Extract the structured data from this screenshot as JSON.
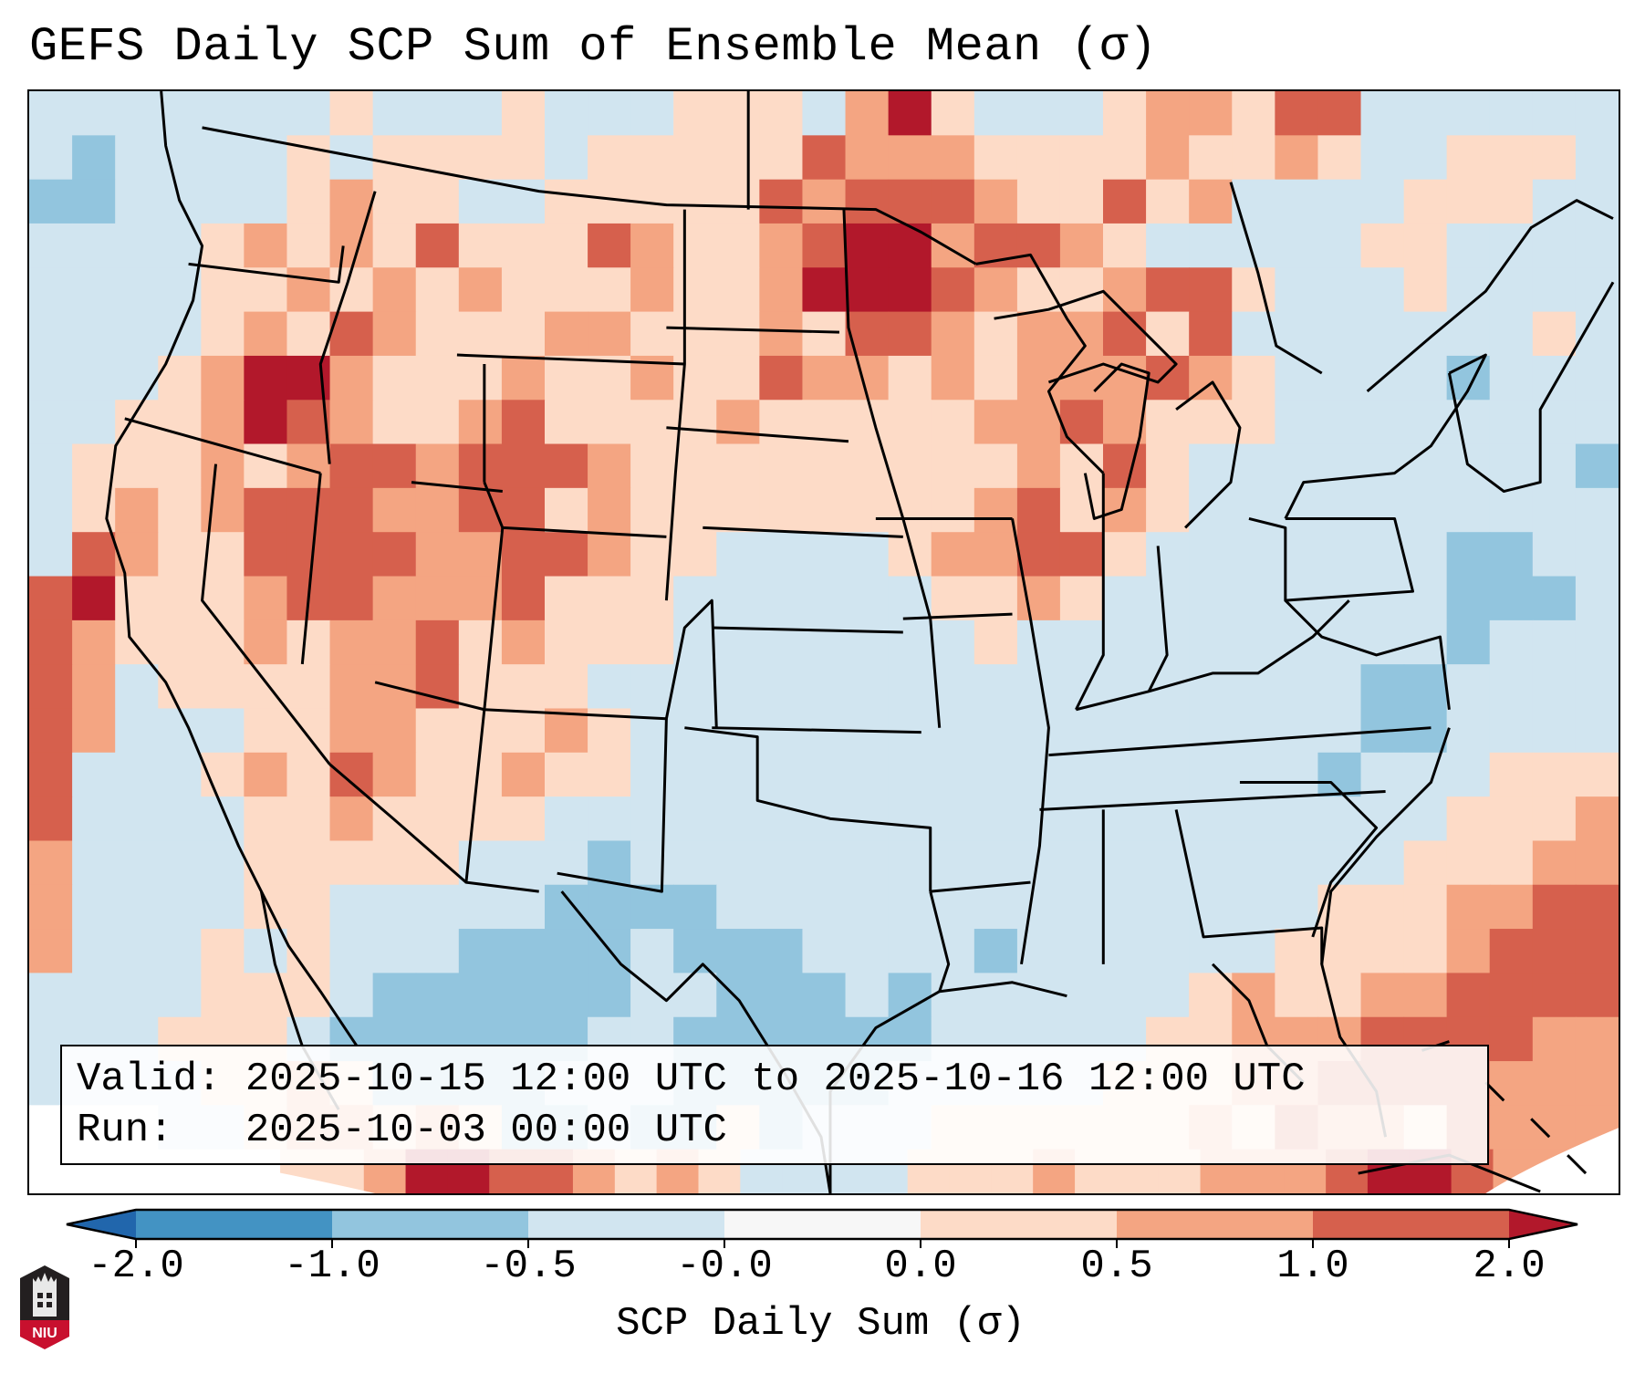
{
  "title": "GEFS Daily SCP Sum of Ensemble Mean (σ)",
  "info_box": {
    "valid_line": "Valid: 2025-10-15 12:00 UTC to 2025-10-16 12:00 UTC",
    "run_line": "Run:   2025-10-03 00:00 UTC"
  },
  "logo": {
    "text": "NIU",
    "colors": {
      "top": "#231f20",
      "bottom": "#c8102e"
    }
  },
  "chart_data": {
    "type": "heatmap",
    "title": "GEFS Daily SCP Sum of Ensemble Mean (σ)",
    "colorbar": {
      "label": "SCP Daily Sum (σ)",
      "ticks": [
        "-2.0",
        "-1.0",
        "-0.5",
        "-0.0",
        "0.0",
        "0.5",
        "1.0",
        "2.0"
      ],
      "extend": "both",
      "bins": [
        {
          "code": "a",
          "range": "< -2.0",
          "color": "#2166ac"
        },
        {
          "code": "b",
          "range": "-2.0 to -1.0",
          "color": "#4393c3"
        },
        {
          "code": "c",
          "range": "-1.0 to -0.5",
          "color": "#92c5de"
        },
        {
          "code": "d",
          "range": "-0.5 to -0.0",
          "color": "#d1e5f0"
        },
        {
          "code": "e",
          "range": "-0.0 to 0.0",
          "color": "#f7f7f7"
        },
        {
          "code": "f",
          "range": "0.0 to 0.5",
          "color": "#fddbc7"
        },
        {
          "code": "g",
          "range": "0.5 to 1.0",
          "color": "#f4a582"
        },
        {
          "code": "h",
          "range": "1.0 to 2.0",
          "color": "#d6604d"
        },
        {
          "code": "i",
          "range": "> 2.0",
          "color": "#b2182b"
        }
      ]
    },
    "region": "Continental United States, Gulf of Mexico, western Atlantic",
    "grid_legend": "Each character is one approximate grid cell (west to east, north to south); '.' = outside projection",
    "grid": [
      "dddddddfdddfdddfffdgifdddfggfhhdddddd",
      "dcddddfdffffdfffffhgggffffgffgfddfffd",
      "ccddddfgffddfffffhghhhgffhfgddddfffdd",
      "ddddfgfgfhfffhgffghiighhgfdddddffdddd",
      "ddddffgfgfgfffgffgiiihgffghhfdddfdddd",
      "ddddfgfhgfffggfffgfhhgfgghfhdddddddfd",
      "dddfgiigfffgffgffhggfgfggghgfddddcddd",
      "ddffgihgffghffffgfffffgghgfffdddddddd",
      "dfffgfghhghhhgfffffffffgfhfdddddddddc",
      "dfgfghhhgghhfgffffffffghfgfdddddddddd",
      "dhgffhhhhgghhgffddddfgghhfdddddddccdd",
      "hifffghhggghfffddddddffgfddddddddcccd",
      "hgfffgfgghfgfffdddddddfddddddddddcddd",
      "hgdffffgghfffddddddddddddddddddccdddd",
      "hgdddffggfffgfdddddddddddddddddccdddd",
      "hdddfgfhgffgffddddddddddddddddcdddfff",
      "hddddffgffffdddddddddddddddddddddfffg",
      "gddddfffffdddcddddddddddddddddddfffgg",
      "gddddffdddddccccddddddddddddddfffgghh",
      "gdddfdfdddccccdcccddddcddddddffffghhh",
      "ddddfffdccccccddcccdcddddddfgffgghhhh",
      "dddfffdccccccddccccccdddddffggghhhhgg",
      "ddddffgfccccdddcccccdddddfffgghhhhggg",
      "...ddfggfgfccdccfcdddffffffgfhggfhggg",
      "......ffgiihhgfgfddddfffgfffggghiihgg."
    ]
  }
}
